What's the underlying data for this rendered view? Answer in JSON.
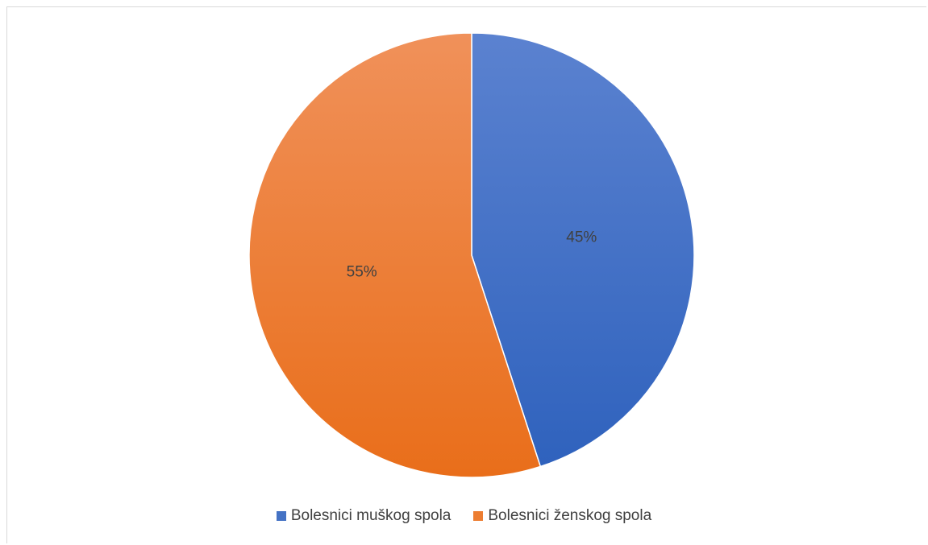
{
  "chart_data": {
    "type": "pie",
    "categories": [
      "Bolesnici muškog spola",
      "Bolesnici ženskog spola"
    ],
    "values": [
      45,
      55
    ],
    "data_labels": [
      "45%",
      "55%"
    ],
    "colors": [
      "#4472c4",
      "#ed7d31"
    ],
    "legend_position": "bottom",
    "start_angle": "12 o'clock, clockwise"
  },
  "legend": {
    "items": [
      {
        "label": "Bolesnici muškog spola",
        "color": "#4472c4"
      },
      {
        "label": "Bolesnici ženskog spola",
        "color": "#ed7d31"
      }
    ]
  }
}
